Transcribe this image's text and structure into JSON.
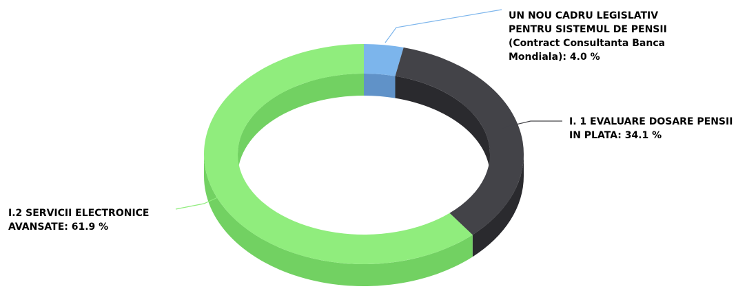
{
  "chart_data": {
    "type": "pie",
    "variant": "3d-donut",
    "title": "",
    "legend": "none",
    "slices": [
      {
        "label_lines": [
          "UN NOU CADRU LEGISLATIV",
          "PENTRU SISTEMUL DE PENSII",
          "(Contract Consultanta Banca",
          "Mondiala): 4.0 %"
        ],
        "value": 4.0,
        "color": "#7cb5ec",
        "side_color": "#6092c8"
      },
      {
        "label_lines": [
          "I. 1 EVALUARE DOSARE PENSII",
          "IN PLATA: 34.1 %"
        ],
        "value": 34.1,
        "color": "#434348",
        "side_color": "#2a2a2e"
      },
      {
        "label_lines": [
          "I.2 SERVICII ELECTRONICE",
          "AVANSATE: 61.9 %"
        ],
        "value": 61.9,
        "color": "#90ed7d",
        "side_color": "#72d162"
      }
    ]
  }
}
